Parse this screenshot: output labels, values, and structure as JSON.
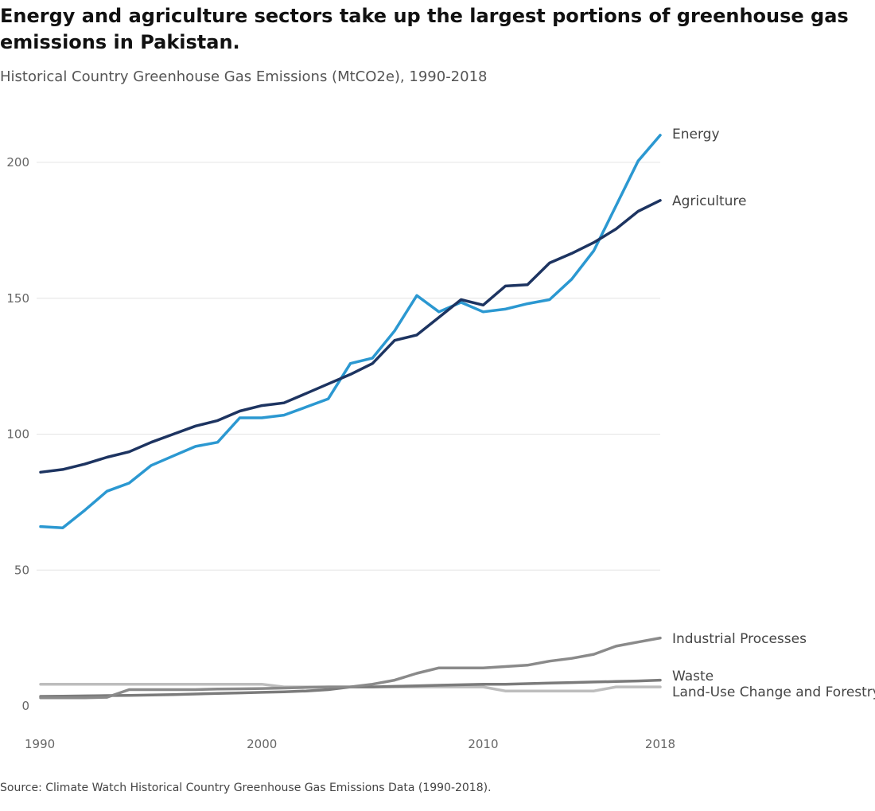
{
  "title": "Energy and agriculture sectors take up the largest portions of greenhouse gas emissions in Pakistan.",
  "subtitle": "Historical Country Greenhouse Gas Emissions (MtCO2e), 1990-2018",
  "source": "Source: Climate Watch Historical Country Greenhouse Gas Emissions Data (1990-2018).",
  "chart_data": {
    "type": "line",
    "xlim": [
      1990,
      2018
    ],
    "ylim": [
      0,
      220
    ],
    "x_ticks": [
      1990,
      2000,
      2010,
      2018
    ],
    "y_ticks": [
      0,
      50,
      100,
      150,
      200
    ],
    "grid": "horizontal",
    "legend": "direct labels at line ends (right)",
    "x": [
      1990,
      1991,
      1992,
      1993,
      1994,
      1995,
      1996,
      1997,
      1998,
      1999,
      2000,
      2001,
      2002,
      2003,
      2004,
      2005,
      2006,
      2007,
      2008,
      2009,
      2010,
      2011,
      2012,
      2013,
      2014,
      2015,
      2016,
      2017,
      2018
    ],
    "series": [
      {
        "name": "Energy",
        "color": "#2b98d1",
        "values": [
          66,
          65.5,
          72,
          79,
          82,
          88.5,
          92,
          95.5,
          97,
          106,
          106,
          107,
          110,
          113,
          126,
          128,
          138,
          151,
          145,
          148.5,
          145,
          146,
          148,
          149.5,
          157,
          167.5,
          184,
          200.5,
          210
        ]
      },
      {
        "name": "Agriculture",
        "color": "#1d3461",
        "values": [
          86,
          87,
          89,
          91.5,
          93.5,
          97,
          100,
          103,
          105,
          108.5,
          110.5,
          111.5,
          115,
          118.5,
          122,
          126,
          134.5,
          136.5,
          143,
          149.5,
          147.5,
          154.5,
          155,
          163,
          166.5,
          170.5,
          175.5,
          182,
          186
        ]
      },
      {
        "name": "Industrial Processes",
        "color": "#8a8a8a",
        "values": [
          3,
          3,
          3,
          3.2,
          6,
          6,
          6,
          6,
          6.2,
          6.3,
          6.4,
          6.6,
          6.8,
          7,
          7,
          8,
          9.5,
          12,
          14,
          14,
          14,
          14.5,
          15,
          16.5,
          17.5,
          19,
          22,
          23.5,
          25
        ]
      },
      {
        "name": "Waste",
        "color": "#7b7b7b",
        "values": [
          3.5,
          3.6,
          3.7,
          3.8,
          3.9,
          4,
          4.2,
          4.4,
          4.6,
          4.8,
          5,
          5.2,
          5.5,
          6,
          7,
          7,
          7.2,
          7.4,
          7.6,
          7.8,
          8,
          8,
          8.2,
          8.4,
          8.6,
          8.8,
          9,
          9.2,
          9.5
        ]
      },
      {
        "name": "Land-Use Change and Forestry",
        "color": "#bdbdbd",
        "values": [
          8,
          8,
          8,
          8,
          8,
          8,
          8,
          8,
          8,
          8,
          8,
          7,
          7,
          7,
          7,
          7,
          7,
          7,
          7,
          7,
          7,
          5.5,
          5.5,
          5.5,
          5.5,
          5.5,
          7,
          7,
          7
        ]
      }
    ]
  }
}
